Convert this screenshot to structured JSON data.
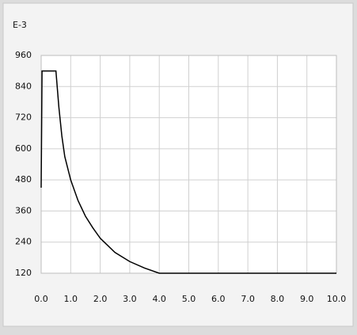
{
  "chart_data": {
    "type": "line",
    "ylabel": "E-3",
    "x": [
      0,
      0.03,
      0.5,
      0.6,
      0.7,
      0.8,
      1.0,
      1.25,
      1.5,
      1.75,
      2.0,
      2.5,
      3.0,
      3.5,
      4.0,
      10.0
    ],
    "values": [
      450,
      900,
      900,
      760,
      650,
      570,
      480,
      400,
      340,
      295,
      255,
      200,
      165,
      140,
      120,
      120
    ],
    "color": "#000000",
    "xlim": [
      0,
      10
    ],
    "ylim": [
      120,
      960
    ],
    "xticks": [
      {
        "value": 0,
        "label": "0.0"
      },
      {
        "value": 1,
        "label": "1.0"
      },
      {
        "value": 2,
        "label": "2.0"
      },
      {
        "value": 3,
        "label": "3.0"
      },
      {
        "value": 4,
        "label": "4.0"
      },
      {
        "value": 5,
        "label": "5.0"
      },
      {
        "value": 6,
        "label": "6.0"
      },
      {
        "value": 7,
        "label": "7.0"
      },
      {
        "value": 8,
        "label": "8.0"
      },
      {
        "value": 9,
        "label": "9.0"
      },
      {
        "value": 10,
        "label": "10.0"
      }
    ],
    "yticks": [
      120,
      240,
      360,
      480,
      600,
      720,
      840,
      960
    ],
    "grid": true
  }
}
